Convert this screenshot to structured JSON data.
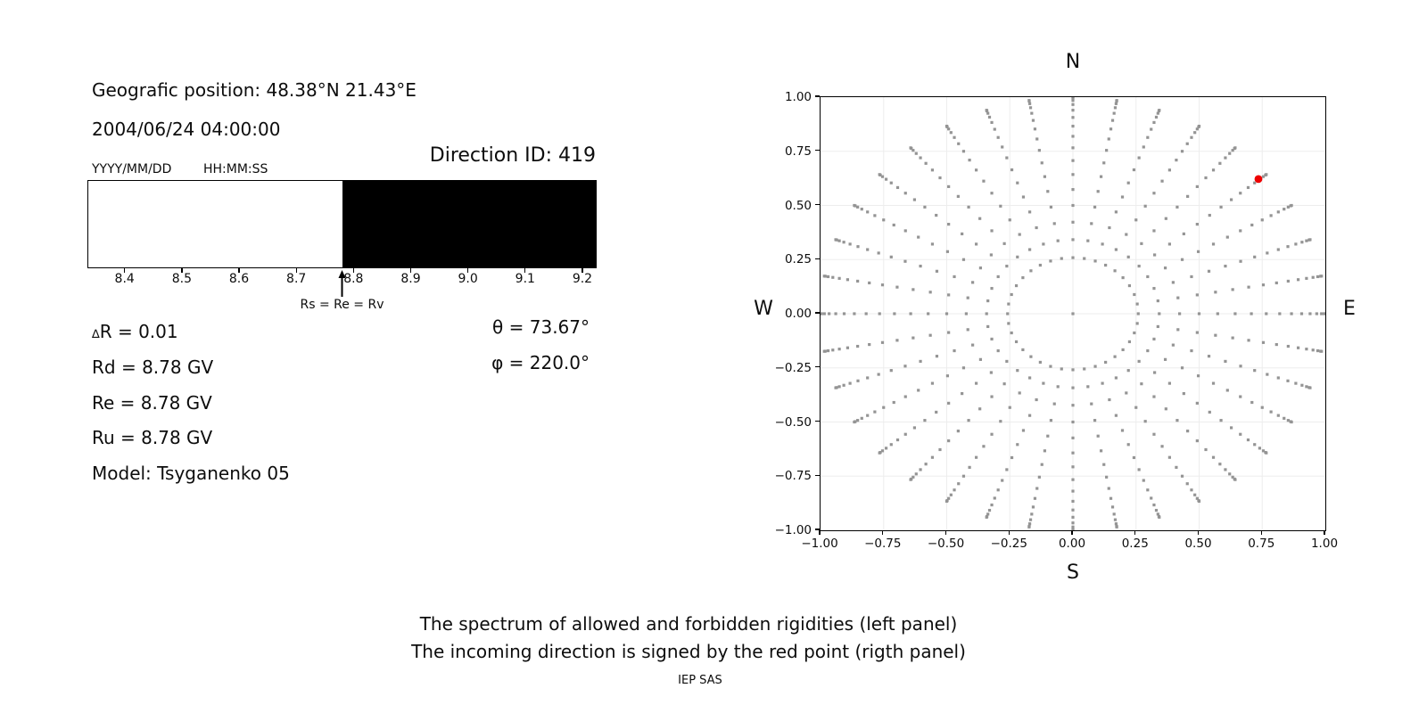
{
  "header": {
    "geo_position": "Geografic position: 48.38°N 21.43°E",
    "datetime": "2004/06/24 04:00:00",
    "date_format_label": "YYYY/MM/DD",
    "time_format_label": "HH:MM:SS",
    "direction_id": "Direction ID: 419"
  },
  "left_panel": {
    "delta_symbol": "∆",
    "delta_text": "R = 0.01",
    "rd": "Rd = 8.78 GV",
    "re": "Re = 8.78 GV",
    "ru": "Ru = 8.78 GV",
    "model": "Model: Tsyganenko 05",
    "theta": "θ = 73.67°",
    "phi": "φ = 220.0°"
  },
  "captions": {
    "line1": "The spectrum of allowed and forbidden rigidities (left panel)",
    "line2": "The incoming direction is signed by the red point (rigth panel)",
    "credit": "IEP SAS"
  },
  "chart_data": [
    {
      "type": "bar",
      "title": "",
      "description": "Rigidity spectrum strip: white = allowed rigidities, black = forbidden rigidities",
      "xlim": [
        8.335,
        9.225
      ],
      "boundary": 8.78,
      "segments": [
        {
          "from": 8.335,
          "to": 8.78,
          "color": "#ffffff",
          "meaning": "allowed"
        },
        {
          "from": 8.78,
          "to": 9.225,
          "color": "#000000",
          "meaning": "forbidden"
        }
      ],
      "tick_values": [
        8.4,
        8.5,
        8.6,
        8.7,
        8.8,
        8.9,
        9.0,
        9.1,
        9.2
      ],
      "tick_labels": [
        "8.4",
        "8.5",
        "8.6",
        "8.7",
        "8.8",
        "8.9",
        "9.0",
        "9.1",
        "9.2"
      ],
      "marker": {
        "value": 8.78,
        "label": "Rs = Re = Rv"
      }
    },
    {
      "type": "scatter",
      "title": "",
      "description": "Sky direction map: radial spokes of gray dots (azimuth every 10°, radius = sin(zenith) for zenith 15°–90° in 5° steps, plus center dot); red point marks the incoming direction",
      "xlim": [
        -1.0,
        1.0
      ],
      "ylim": [
        -1.0,
        1.0
      ],
      "grid": true,
      "compass": {
        "top": "N",
        "bottom": "S",
        "left": "W",
        "right": "E"
      },
      "x_ticks": {
        "values": [
          -1.0,
          -0.75,
          -0.5,
          -0.25,
          0.0,
          0.25,
          0.5,
          0.75,
          1.0
        ],
        "labels": [
          "−1.00",
          "−0.75",
          "−0.50",
          "−0.25",
          "0.00",
          "0.25",
          "0.50",
          "0.75",
          "1.00"
        ]
      },
      "y_ticks": {
        "values": [
          1.0,
          0.75,
          0.5,
          0.25,
          0.0,
          -0.25,
          -0.5,
          -0.75,
          -1.0
        ],
        "labels": [
          "1.00",
          "0.75",
          "0.50",
          "0.25",
          "0.00",
          "−0.25",
          "−0.50",
          "−0.75",
          "−1.00"
        ]
      },
      "dots": {
        "azimuth_step_deg": 10,
        "zenith_min_deg": 15,
        "zenith_max_deg": 90,
        "zenith_step_deg": 5,
        "radius_formula": "sin(zenith)",
        "center_dot": true,
        "color": "#949494",
        "marker_size_px": 3.2
      },
      "red_point": {
        "x": 0.735,
        "y": 0.622,
        "color": "#ee0000",
        "radius_px": 4.4
      },
      "grid_color": "#ededed"
    }
  ]
}
